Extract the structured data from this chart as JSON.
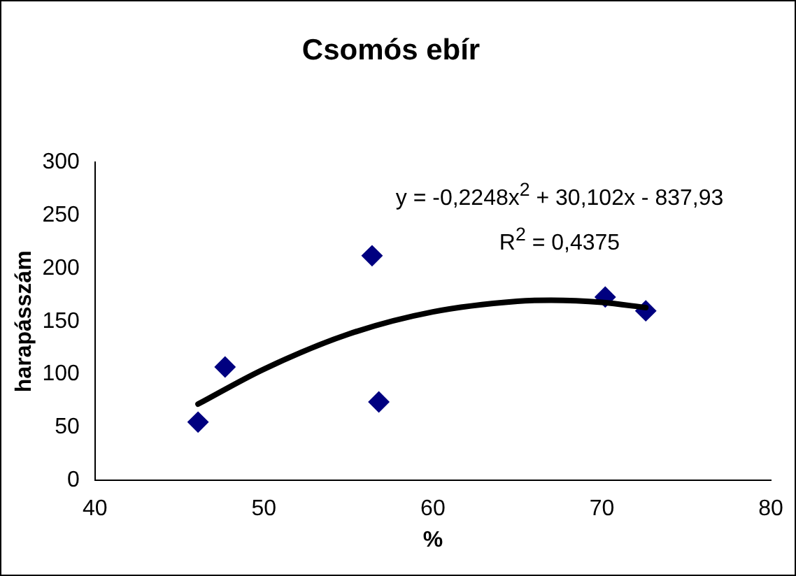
{
  "chart_data": {
    "type": "scatter",
    "title": "Csomós ebír",
    "xlabel": "%",
    "ylabel": "harapásszám",
    "xlim": [
      40,
      80
    ],
    "xticks": [
      40,
      50,
      60,
      70,
      80
    ],
    "ylim": [
      0,
      300
    ],
    "yticks": [
      0,
      50,
      100,
      150,
      200,
      250,
      300
    ],
    "grid": false,
    "legend": false,
    "marker": "diamond",
    "series": [
      {
        "type": "scatter",
        "color": "#000080",
        "x": [
          46.1,
          47.7,
          56.4,
          56.8,
          70.2,
          72.6
        ],
        "values": [
          55,
          107,
          212,
          74,
          173,
          160
        ]
      },
      {
        "type": "line",
        "color": "#000000",
        "marker": "none",
        "x": [
          46.1,
          50,
          55,
          60,
          65,
          67,
          70,
          72.6
        ],
        "values": [
          72,
          105,
          138,
          159,
          169,
          170,
          168,
          163
        ]
      }
    ],
    "annotations": [
      "y = -0,2248x$^{2}$ + 30,102x - 837,93",
      "R$^{2}$ = 0,4375"
    ]
  }
}
